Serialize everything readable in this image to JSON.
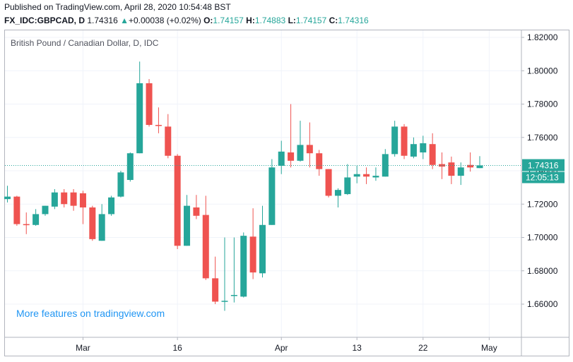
{
  "header": {
    "published": "Published on TradingView.com, April 28, 2020 10:54:48 BST",
    "symbol": "FX_IDC:GBPCAD, D",
    "last": "1.74316",
    "change_arrow": "▲",
    "change": "+0.00038 (+0.02%)",
    "o_label": "O:",
    "o_value": "1.74157",
    "h_label": "H:",
    "h_value": "1.74883",
    "l_label": "L:",
    "l_value": "1.74157",
    "c_label": "C:",
    "c_value": "1.74316"
  },
  "legend_title": "British Pound / Canadian Dollar, D, IDC",
  "promo_text": "More features on tradingview.com",
  "colors": {
    "up": "#26a69a",
    "down": "#ef5350",
    "grid": "#f0f3fa",
    "axis": "#b2b5be",
    "price_line": "#26a69a"
  },
  "chart_data": {
    "type": "candlestick",
    "title": "British Pound / Canadian Dollar, D, IDC",
    "ylim": [
      1.645,
      1.825
    ],
    "y_ticks": [
      "1.82000",
      "1.80000",
      "1.78000",
      "1.76000",
      "1.74000",
      "1.72000",
      "1.70000",
      "1.68000",
      "1.66000"
    ],
    "x_ticks": [
      {
        "label": "Mar",
        "index": 8
      },
      {
        "label": "16",
        "index": 18
      },
      {
        "label": "Apr",
        "index": 29
      },
      {
        "label": "13",
        "index": 37
      },
      {
        "label": "22",
        "index": 44
      },
      {
        "label": "May",
        "index": 51
      }
    ],
    "last_price_label": "1.74316",
    "countdown_label": "12:05:13",
    "last_price": 1.74316,
    "candles": [
      {
        "o": 1.723,
        "h": 1.731,
        "l": 1.721,
        "c": 1.7245
      },
      {
        "o": 1.7245,
        "h": 1.725,
        "l": 1.707,
        "c": 1.708
      },
      {
        "o": 1.708,
        "h": 1.715,
        "l": 1.702,
        "c": 1.7075
      },
      {
        "o": 1.7075,
        "h": 1.717,
        "l": 1.707,
        "c": 1.714
      },
      {
        "o": 1.714,
        "h": 1.719,
        "l": 1.713,
        "c": 1.719
      },
      {
        "o": 1.7185,
        "h": 1.729,
        "l": 1.717,
        "c": 1.727
      },
      {
        "o": 1.727,
        "h": 1.729,
        "l": 1.718,
        "c": 1.72
      },
      {
        "o": 1.727,
        "h": 1.729,
        "l": 1.716,
        "c": 1.719
      },
      {
        "o": 1.7265,
        "h": 1.728,
        "l": 1.708,
        "c": 1.718
      },
      {
        "o": 1.718,
        "h": 1.719,
        "l": 1.698,
        "c": 1.699
      },
      {
        "o": 1.698,
        "h": 1.72,
        "l": 1.698,
        "c": 1.714
      },
      {
        "o": 1.714,
        "h": 1.725,
        "l": 1.713,
        "c": 1.724
      },
      {
        "o": 1.7245,
        "h": 1.74,
        "l": 1.724,
        "c": 1.739
      },
      {
        "o": 1.7345,
        "h": 1.751,
        "l": 1.7335,
        "c": 1.7505
      },
      {
        "o": 1.7505,
        "h": 1.8055,
        "l": 1.7505,
        "c": 1.7925
      },
      {
        "o": 1.7925,
        "h": 1.795,
        "l": 1.7665,
        "c": 1.7675
      },
      {
        "o": 1.7675,
        "h": 1.778,
        "l": 1.7625,
        "c": 1.767
      },
      {
        "o": 1.7665,
        "h": 1.774,
        "l": 1.7475,
        "c": 1.749
      },
      {
        "o": 1.749,
        "h": 1.75,
        "l": 1.693,
        "c": 1.695
      },
      {
        "o": 1.695,
        "h": 1.7255,
        "l": 1.695,
        "c": 1.719
      },
      {
        "o": 1.718,
        "h": 1.7255,
        "l": 1.711,
        "c": 1.713
      },
      {
        "o": 1.7135,
        "h": 1.725,
        "l": 1.6745,
        "c": 1.6755
      },
      {
        "o": 1.6755,
        "h": 1.6885,
        "l": 1.66,
        "c": 1.6615
      },
      {
        "o": 1.6615,
        "h": 1.7,
        "l": 1.656,
        "c": 1.662
      },
      {
        "o": 1.6655,
        "h": 1.7,
        "l": 1.661,
        "c": 1.6655
      },
      {
        "o": 1.6645,
        "h": 1.703,
        "l": 1.664,
        "c": 1.701
      },
      {
        "o": 1.7005,
        "h": 1.7175,
        "l": 1.675,
        "c": 1.679
      },
      {
        "o": 1.6785,
        "h": 1.719,
        "l": 1.676,
        "c": 1.7075
      },
      {
        "o": 1.7075,
        "h": 1.747,
        "l": 1.7075,
        "c": 1.742
      },
      {
        "o": 1.743,
        "h": 1.758,
        "l": 1.738,
        "c": 1.7515
      },
      {
        "o": 1.751,
        "h": 1.78,
        "l": 1.742,
        "c": 1.746
      },
      {
        "o": 1.746,
        "h": 1.77,
        "l": 1.7455,
        "c": 1.7555
      },
      {
        "o": 1.7555,
        "h": 1.769,
        "l": 1.742,
        "c": 1.7505
      },
      {
        "o": 1.7505,
        "h": 1.7525,
        "l": 1.737,
        "c": 1.741
      },
      {
        "o": 1.741,
        "h": 1.741,
        "l": 1.724,
        "c": 1.725
      },
      {
        "o": 1.725,
        "h": 1.7295,
        "l": 1.718,
        "c": 1.7285
      },
      {
        "o": 1.726,
        "h": 1.744,
        "l": 1.7255,
        "c": 1.736
      },
      {
        "o": 1.7365,
        "h": 1.743,
        "l": 1.7325,
        "c": 1.738
      },
      {
        "o": 1.738,
        "h": 1.742,
        "l": 1.732,
        "c": 1.7365
      },
      {
        "o": 1.736,
        "h": 1.742,
        "l": 1.734,
        "c": 1.737
      },
      {
        "o": 1.7365,
        "h": 1.753,
        "l": 1.7365,
        "c": 1.75
      },
      {
        "o": 1.75,
        "h": 1.77,
        "l": 1.7485,
        "c": 1.7665
      },
      {
        "o": 1.7665,
        "h": 1.768,
        "l": 1.747,
        "c": 1.749
      },
      {
        "o": 1.7485,
        "h": 1.76,
        "l": 1.7475,
        "c": 1.756
      },
      {
        "o": 1.751,
        "h": 1.761,
        "l": 1.747,
        "c": 1.7565
      },
      {
        "o": 1.756,
        "h": 1.7625,
        "l": 1.741,
        "c": 1.7435
      },
      {
        "o": 1.744,
        "h": 1.751,
        "l": 1.735,
        "c": 1.7425
      },
      {
        "o": 1.745,
        "h": 1.7485,
        "l": 1.732,
        "c": 1.737
      },
      {
        "o": 1.737,
        "h": 1.745,
        "l": 1.7315,
        "c": 1.742
      },
      {
        "o": 1.7435,
        "h": 1.751,
        "l": 1.7395,
        "c": 1.742
      },
      {
        "o": 1.7416,
        "h": 1.7488,
        "l": 1.7416,
        "c": 1.7432
      }
    ]
  }
}
